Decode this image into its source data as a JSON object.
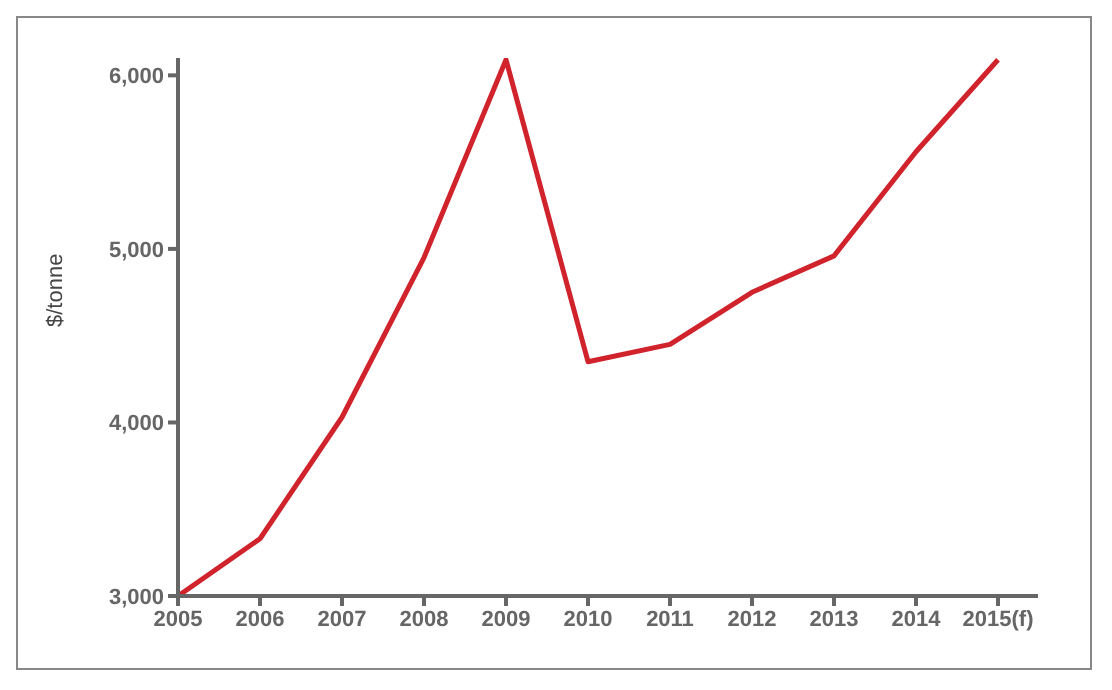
{
  "chart_data": {
    "type": "line",
    "ylabel": "$/tonne",
    "categories": [
      "2005",
      "2006",
      "2007",
      "2008",
      "2009",
      "2010",
      "2011",
      "2012",
      "2013",
      "2014",
      "2015(f)"
    ],
    "series": [
      {
        "color": "#d0232c",
        "values": [
          3000,
          3330,
          4030,
          4950,
          6090,
          4350,
          4450,
          4750,
          4960,
          5560,
          6090
        ]
      }
    ],
    "ylim": [
      3000,
      6100
    ],
    "yticks": [
      {
        "value": 3000,
        "label": "3,000"
      },
      {
        "value": 4000,
        "label": "4,000"
      },
      {
        "value": 5000,
        "label": "5,000"
      },
      {
        "value": 6000,
        "label": "6,000"
      }
    ],
    "grid": false,
    "legend": false,
    "marker": "none",
    "line_style": "solid"
  }
}
